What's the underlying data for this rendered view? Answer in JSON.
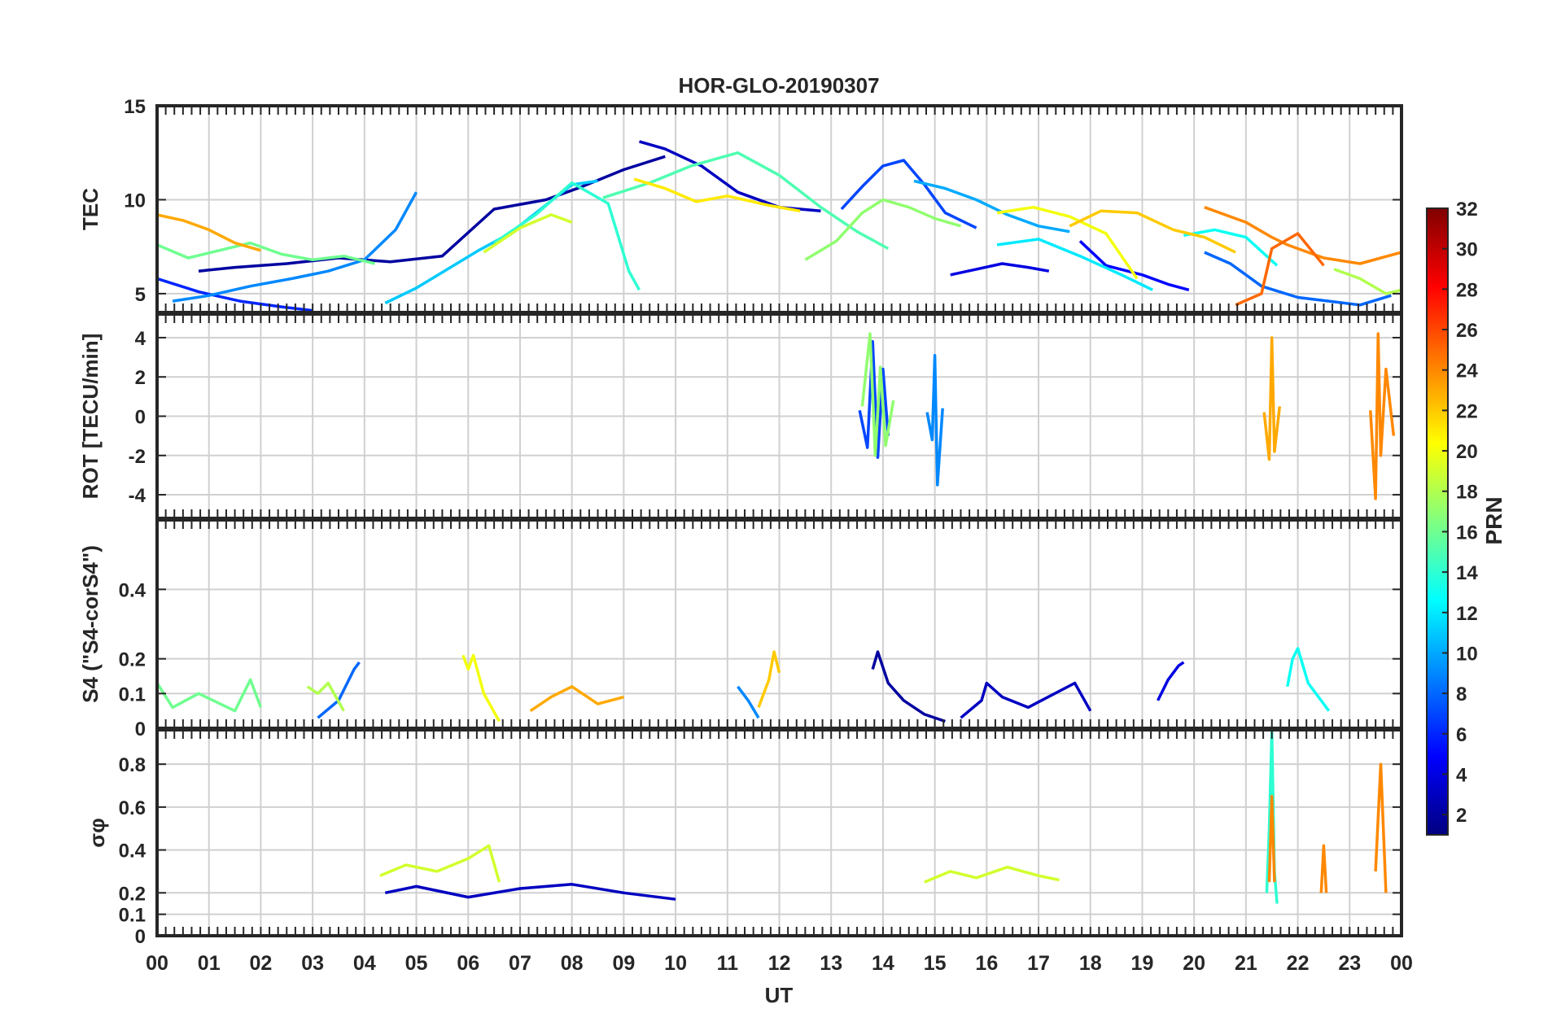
{
  "chart_data": {
    "type": "line",
    "title": "HOR-GLO-20190307",
    "xlabel": "UT",
    "x_tick_labels": [
      "00",
      "01",
      "02",
      "03",
      "04",
      "05",
      "06",
      "07",
      "08",
      "09",
      "10",
      "11",
      "12",
      "13",
      "14",
      "15",
      "16",
      "17",
      "18",
      "19",
      "20",
      "21",
      "22",
      "23",
      "00"
    ],
    "xlim": [
      0,
      24
    ],
    "grid": true,
    "colorbar": {
      "label": "PRN",
      "range": [
        1,
        32
      ],
      "tick_labels": [
        "2",
        "4",
        "6",
        "8",
        "10",
        "12",
        "14",
        "16",
        "18",
        "20",
        "22",
        "24",
        "26",
        "28",
        "30",
        "32"
      ],
      "colormap": "jet"
    },
    "panels": [
      {
        "id": "tec",
        "ylabel": "TEC",
        "ylim": [
          4,
          15
        ],
        "y_tick_values": [
          5,
          10,
          15
        ],
        "y_tick_labels": [
          "5",
          "10",
          "15"
        ],
        "series": [
          {
            "name": "PRN 2",
            "prn": 2,
            "x": [
              0.8,
              1.5,
              2.5,
              3.5,
              4.5,
              5.5,
              6.5,
              7.5,
              8.2,
              9.0,
              9.8
            ],
            "values": [
              6.2,
              6.4,
              6.6,
              6.9,
              6.7,
              7.0,
              9.5,
              10.0,
              10.7,
              11.6,
              12.3
            ]
          },
          {
            "name": "PRN 3",
            "prn": 3,
            "x": [
              9.3,
              9.8,
              10.5,
              11.2,
              12.0,
              12.8
            ],
            "values": [
              13.1,
              12.7,
              11.8,
              10.4,
              9.6,
              9.4
            ]
          },
          {
            "name": "PRN 4",
            "prn": 4,
            "x": [
              15.3,
              15.8,
              16.3,
              16.8,
              17.2
            ],
            "values": [
              6.0,
              6.3,
              6.6,
              6.4,
              6.2
            ]
          },
          {
            "name": "PRN 5",
            "prn": 5,
            "x": [
              17.8,
              18.3,
              19.0,
              19.5,
              19.9
            ],
            "values": [
              7.8,
              6.5,
              6.0,
              5.5,
              5.2
            ]
          },
          {
            "name": "PRN 6",
            "prn": 6,
            "x": [
              0.0,
              0.8,
              1.6,
              2.4,
              3.0
            ],
            "values": [
              5.8,
              5.1,
              4.6,
              4.3,
              4.1
            ]
          },
          {
            "name": "PRN 7",
            "prn": 7,
            "x": [
              13.2,
              13.6,
              14.0,
              14.4,
              14.8,
              15.2,
              15.8
            ],
            "values": [
              9.5,
              10.7,
              11.8,
              12.1,
              10.8,
              9.3,
              8.5
            ]
          },
          {
            "name": "PRN 8",
            "prn": 8,
            "x": [
              20.2,
              20.7,
              21.3,
              22.0,
              22.6,
              23.2,
              23.8
            ],
            "values": [
              7.2,
              6.6,
              5.4,
              4.8,
              4.6,
              4.4,
              4.9
            ]
          },
          {
            "name": "PRN 9",
            "prn": 9,
            "x": [
              0.3,
              1.0,
              1.8,
              2.6,
              3.3,
              4.0,
              4.6,
              5.0
            ],
            "values": [
              4.6,
              4.9,
              5.4,
              5.8,
              6.2,
              6.8,
              8.4,
              10.4
            ]
          },
          {
            "name": "PRN 10",
            "prn": 10,
            "x": [
              14.6,
              15.2,
              15.8,
              16.4,
              17.0,
              17.6
            ],
            "values": [
              11.0,
              10.6,
              10.0,
              9.2,
              8.6,
              8.3
            ]
          },
          {
            "name": "PRN 11",
            "prn": 11,
            "x": [
              4.4,
              5.0,
              5.6,
              6.2,
              6.8,
              7.4,
              8.0,
              8.5
            ],
            "values": [
              4.5,
              5.3,
              6.3,
              7.3,
              8.2,
              9.5,
              10.8,
              11.0
            ]
          },
          {
            "name": "PRN 12",
            "prn": 12,
            "x": [
              16.2,
              17.0,
              17.8,
              18.6,
              19.2
            ],
            "values": [
              7.6,
              7.9,
              7.0,
              6.0,
              5.2
            ]
          },
          {
            "name": "PRN 13",
            "prn": 13,
            "x": [
              19.8,
              20.4,
              21.0,
              21.6
            ],
            "values": [
              8.1,
              8.4,
              8.0,
              6.5
            ]
          },
          {
            "name": "PRN 14",
            "prn": 14,
            "x": [
              6.5,
              7.3,
              8.0,
              8.7,
              9.1,
              9.3
            ],
            "values": [
              7.7,
              9.2,
              10.9,
              9.8,
              6.2,
              5.2
            ]
          },
          {
            "name": "PRN 15",
            "prn": 15,
            "x": [
              8.6,
              9.5,
              10.3,
              11.2,
              12.0,
              12.8,
              13.5,
              14.1
            ],
            "values": [
              10.1,
              10.9,
              11.8,
              12.5,
              11.3,
              9.6,
              8.3,
              7.4
            ]
          },
          {
            "name": "PRN 16",
            "prn": 16,
            "x": [
              0.0,
              0.6,
              1.2,
              1.8,
              2.4,
              3.0,
              3.6,
              4.2
            ],
            "values": [
              7.6,
              6.9,
              7.3,
              7.7,
              7.1,
              6.8,
              7.0,
              6.6
            ]
          },
          {
            "name": "PRN 17",
            "prn": 17,
            "x": [
              12.5,
              13.1,
              13.6,
              14.0,
              14.5,
              15.0,
              15.5
            ],
            "values": [
              6.8,
              7.8,
              9.3,
              10.0,
              9.6,
              9.0,
              8.6
            ]
          },
          {
            "name": "PRN 18",
            "prn": 18,
            "x": [
              22.7,
              23.2,
              23.7,
              24.0
            ],
            "values": [
              6.3,
              5.8,
              5.0,
              5.2
            ]
          },
          {
            "name": "PRN 19",
            "prn": 19,
            "x": [
              6.3,
              7.0,
              7.6,
              8.0
            ],
            "values": [
              7.2,
              8.5,
              9.2,
              8.8
            ]
          },
          {
            "name": "PRN 20",
            "prn": 20,
            "x": [
              16.2,
              16.9,
              17.6,
              18.3,
              18.9
            ],
            "values": [
              9.3,
              9.6,
              9.1,
              8.2,
              5.8
            ]
          },
          {
            "name": "PRN 21",
            "prn": 21,
            "x": [
              9.2,
              9.8,
              10.4,
              11.0,
              11.8,
              12.4
            ],
            "values": [
              11.1,
              10.6,
              9.9,
              10.2,
              9.7,
              9.4
            ]
          },
          {
            "name": "PRN 22",
            "prn": 22,
            "x": [
              17.6,
              18.2,
              18.9,
              19.6,
              20.2,
              20.8
            ],
            "values": [
              8.6,
              9.4,
              9.3,
              8.4,
              8.0,
              7.2
            ]
          },
          {
            "name": "PRN 23",
            "prn": 23,
            "x": [
              0.0,
              0.5,
              1.0,
              1.5,
              2.0
            ],
            "values": [
              9.2,
              8.9,
              8.4,
              7.7,
              7.3
            ]
          },
          {
            "name": "PRN 24",
            "prn": 24,
            "x": [
              20.2,
              21.0,
              21.5,
              21.8,
              22.5,
              23.2,
              24.0
            ],
            "values": [
              9.6,
              8.8,
              8.0,
              7.6,
              6.9,
              6.6,
              7.2
            ]
          },
          {
            "name": "PRN 25",
            "prn": 25,
            "x": [
              20.8,
              21.3,
              21.5,
              22.0,
              22.5
            ],
            "values": [
              4.4,
              5.0,
              7.4,
              8.2,
              6.5
            ]
          }
        ]
      },
      {
        "id": "rot",
        "ylabel": "ROT [TECU/min]",
        "ylim": [
          -5.2,
          5.2
        ],
        "y_tick_values": [
          -4,
          -2,
          0,
          2,
          4
        ],
        "y_tick_labels": [
          "-4",
          "-2",
          "0",
          "2",
          "4"
        ],
        "series": [
          {
            "name": "PRN 7",
            "prn": 7,
            "x": [
              13.55,
              13.7,
              13.8,
              13.9,
              14.0,
              14.1
            ],
            "values": [
              0.3,
              -1.6,
              3.8,
              -2.1,
              2.4,
              -1.0
            ]
          },
          {
            "name": "PRN 9",
            "prn": 9,
            "x": [
              14.85,
              14.95,
              15.0,
              15.05,
              15.15
            ],
            "values": [
              0.2,
              -1.2,
              3.1,
              -3.5,
              0.4
            ]
          },
          {
            "name": "PRN 17",
            "prn": 17,
            "x": [
              13.6,
              13.75,
              13.85,
              13.95,
              14.05,
              14.2
            ],
            "values": [
              0.5,
              4.2,
              -2.0,
              2.5,
              -1.5,
              0.8
            ]
          },
          {
            "name": "PRN 23",
            "prn": 23,
            "x": [
              21.35,
              21.45,
              21.5,
              21.55,
              21.65
            ],
            "values": [
              0.2,
              -2.2,
              4.0,
              -1.8,
              0.5
            ]
          },
          {
            "name": "PRN 24",
            "prn": 24,
            "x": [
              23.4,
              23.5,
              23.55,
              23.6,
              23.7,
              23.85
            ],
            "values": [
              0.3,
              -4.2,
              4.2,
              -2.0,
              2.4,
              -1.0
            ]
          }
        ]
      },
      {
        "id": "s4",
        "ylabel": "S4 (\"S4-corS4\")",
        "ylim": [
          0,
          0.6
        ],
        "y_tick_values": [
          0,
          0.1,
          0.2,
          0.4
        ],
        "y_tick_labels": [
          "0",
          "0.1",
          "0.2",
          "0.4"
        ],
        "series": [
          {
            "name": "PRN 2",
            "prn": 2,
            "x": [
              13.8,
              13.9,
              14.1,
              14.4,
              14.8,
              15.2
            ],
            "values": [
              0.17,
              0.22,
              0.13,
              0.08,
              0.04,
              0.02
            ]
          },
          {
            "name": "PRN 3",
            "prn": 3,
            "x": [
              15.5,
              15.9,
              16.0,
              16.3,
              16.8,
              17.7,
              18.0
            ],
            "values": [
              0.03,
              0.08,
              0.13,
              0.09,
              0.06,
              0.13,
              0.05
            ]
          },
          {
            "name": "PRN 4",
            "prn": 4,
            "x": [
              19.3,
              19.5,
              19.7,
              19.8
            ],
            "values": [
              0.08,
              0.14,
              0.18,
              0.19
            ]
          },
          {
            "name": "PRN 8",
            "prn": 8,
            "x": [
              3.1,
              3.5,
              3.8,
              3.9
            ],
            "values": [
              0.03,
              0.08,
              0.17,
              0.19
            ]
          },
          {
            "name": "PRN 9",
            "prn": 9,
            "x": [
              11.2,
              11.4,
              11.6
            ],
            "values": [
              0.12,
              0.08,
              0.03
            ]
          },
          {
            "name": "PRN 13",
            "prn": 13,
            "x": [
              21.8,
              21.9,
              22.0,
              22.2,
              22.6
            ],
            "values": [
              0.12,
              0.2,
              0.23,
              0.13,
              0.05
            ]
          },
          {
            "name": "PRN 16",
            "prn": 16,
            "x": [
              0.0,
              0.3,
              0.8,
              1.5,
              1.8,
              2.0
            ],
            "values": [
              0.13,
              0.06,
              0.1,
              0.05,
              0.14,
              0.06
            ]
          },
          {
            "name": "PRN 18",
            "prn": 18,
            "x": [
              2.9,
              3.1,
              3.3,
              3.6
            ],
            "values": [
              0.12,
              0.1,
              0.13,
              0.05
            ]
          },
          {
            "name": "PRN 20",
            "prn": 20,
            "x": [
              5.9,
              6.0,
              6.1,
              6.3,
              6.6
            ],
            "values": [
              0.21,
              0.17,
              0.21,
              0.1,
              0.02
            ]
          },
          {
            "name": "PRN 22",
            "prn": 22,
            "x": [
              11.6,
              11.8,
              11.9,
              12.0
            ],
            "values": [
              0.06,
              0.14,
              0.22,
              0.16
            ]
          },
          {
            "name": "PRN 23",
            "prn": 23,
            "x": [
              7.2,
              7.6,
              8.0,
              8.5,
              9.0
            ],
            "values": [
              0.05,
              0.09,
              0.12,
              0.07,
              0.09
            ]
          }
        ]
      },
      {
        "id": "sigma_phi",
        "ylabel": "σφ",
        "ylim": [
          0,
          0.96
        ],
        "y_tick_values": [
          0,
          0.1,
          0.2,
          0.4,
          0.6,
          0.8
        ],
        "y_tick_labels": [
          "0",
          "0.1",
          "0.2",
          "0.4",
          "0.6",
          "0.8"
        ],
        "series": [
          {
            "name": "PRN 3",
            "prn": 3,
            "x": [
              4.4,
              5.0,
              6.0,
              7.0,
              8.0,
              9.0,
              10.0
            ],
            "values": [
              0.2,
              0.23,
              0.18,
              0.22,
              0.24,
              0.2,
              0.17
            ]
          },
          {
            "name": "PRN 14",
            "prn": 14,
            "x": [
              21.4,
              21.45,
              21.5,
              21.55,
              21.6
            ],
            "values": [
              0.2,
              0.5,
              0.96,
              0.3,
              0.15
            ]
          },
          {
            "name": "PRN 19",
            "prn": 19,
            "x": [
              4.3,
              4.8,
              5.4,
              6.0,
              6.4,
              6.6
            ],
            "values": [
              0.28,
              0.33,
              0.3,
              0.36,
              0.42,
              0.25
            ]
          },
          {
            "name": "PRN 19",
            "prn": 19,
            "x": [
              14.8,
              15.3,
              15.8,
              16.4,
              17.0,
              17.4
            ],
            "values": [
              0.25,
              0.3,
              0.27,
              0.32,
              0.28,
              0.26
            ]
          },
          {
            "name": "PRN 24",
            "prn": 24,
            "x": [
              21.45,
              21.5,
              21.55
            ],
            "values": [
              0.25,
              0.65,
              0.25
            ]
          },
          {
            "name": "PRN 24",
            "prn": 24,
            "x": [
              22.45,
              22.5,
              22.55
            ],
            "values": [
              0.2,
              0.42,
              0.2
            ]
          },
          {
            "name": "PRN 24",
            "prn": 24,
            "x": [
              23.5,
              23.6,
              23.7
            ],
            "values": [
              0.3,
              0.8,
              0.2
            ]
          }
        ]
      }
    ]
  }
}
